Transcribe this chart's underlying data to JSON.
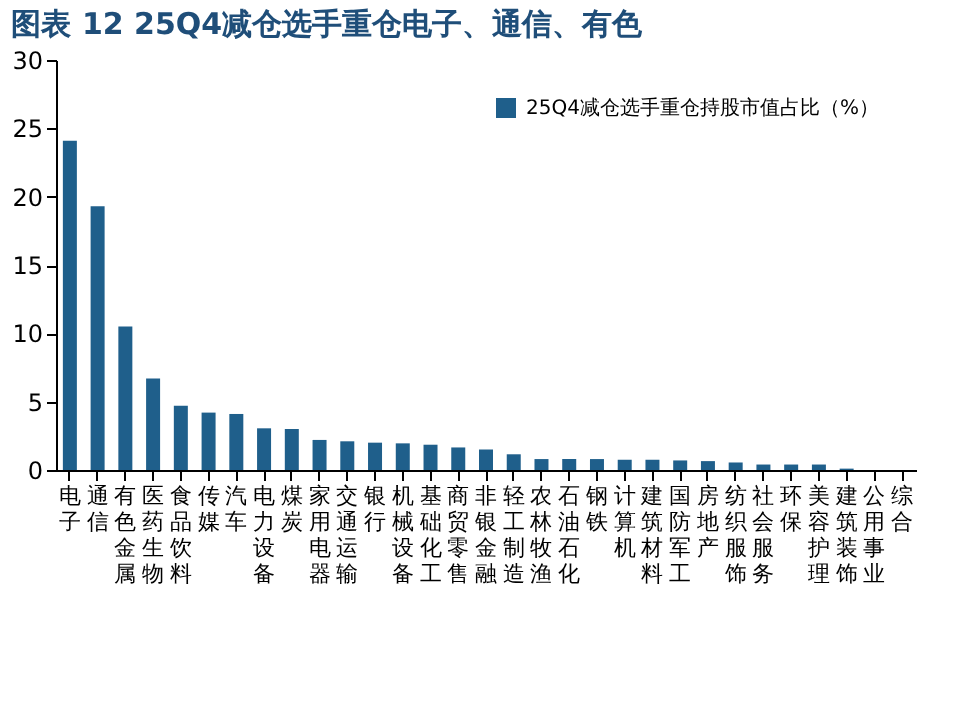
{
  "chart_data": {
    "type": "bar",
    "title": "图表 12    25Q4减仓选手重仓电子、通信、有色",
    "categories": [
      "电子",
      "通信",
      "有色金属",
      "医药生物",
      "食品饮料",
      "传媒",
      "汽车",
      "电力设备",
      "煤炭",
      "家用电器",
      "交通运输",
      "银行",
      "机械设备",
      "基础化工",
      "商贸零售",
      "非银金融",
      "轻工制造",
      "农林牧渔",
      "石油石化",
      "钢铁",
      "计算机",
      "建筑材料",
      "国防军工",
      "房地产",
      "纺织服饰",
      "社会服务",
      "环保",
      "美容护理",
      "建筑装饰",
      "公用事业",
      "综合"
    ],
    "series": [
      {
        "name": "25Q4减仓选手重仓持股市值占比（%）",
        "color": "#1f5f8b",
        "values": [
          24.1,
          19.3,
          10.5,
          6.7,
          4.7,
          4.2,
          4.1,
          3.05,
          3.0,
          2.2,
          2.1,
          2.0,
          1.95,
          1.85,
          1.65,
          1.5,
          1.15,
          0.8,
          0.8,
          0.8,
          0.75,
          0.75,
          0.7,
          0.65,
          0.55,
          0.4,
          0.4,
          0.4,
          0.1,
          0,
          0
        ]
      }
    ],
    "ylim": [
      0,
      30
    ],
    "yticks": [
      0,
      5,
      10,
      15,
      20,
      25,
      30
    ],
    "grid": false,
    "legend": "top right"
  }
}
